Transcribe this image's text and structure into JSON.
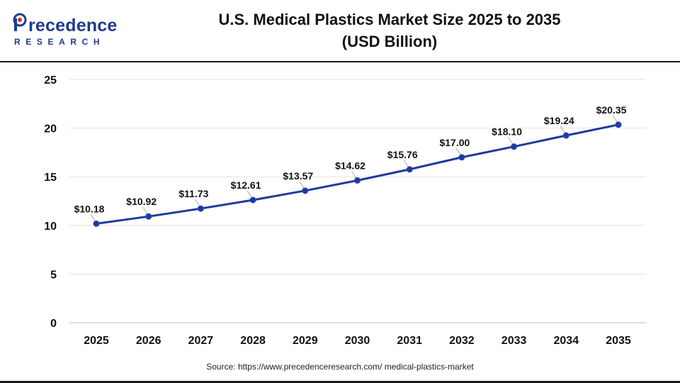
{
  "brand": {
    "name": "recedence",
    "sub": "RESEARCH",
    "initial": "P",
    "color": "#1f3a8a",
    "accent": "#d32f2f"
  },
  "title": {
    "line1": "U.S. Medical Plastics Market Size 2025 to 2035",
    "line2": "(USD Billion)"
  },
  "source": "Source: https://www.precedenceresearch.com/ medical-plastics-market",
  "chart_data": {
    "type": "line",
    "title": "U.S. Medical Plastics Market Size 2025 to 2035 (USD Billion)",
    "xlabel": "",
    "ylabel": "",
    "x": [
      "2025",
      "2026",
      "2027",
      "2028",
      "2029",
      "2030",
      "2031",
      "2032",
      "2033",
      "2034",
      "2035"
    ],
    "y_ticks": [
      "0",
      "5",
      "10",
      "15",
      "20",
      "25"
    ],
    "ylim": [
      0,
      25
    ],
    "grid": true,
    "series": [
      {
        "values": [
          10.18,
          10.92,
          11.73,
          12.61,
          13.57,
          14.62,
          15.76,
          17.0,
          18.1,
          19.24,
          20.35
        ],
        "labels": [
          "$10.18",
          "$10.92",
          "$11.73",
          "$12.61",
          "$13.57",
          "$14.62",
          "$15.76",
          "$17.00",
          "$18.10",
          "$19.24",
          "$20.35"
        ],
        "color": "#1f3a9c"
      }
    ]
  }
}
